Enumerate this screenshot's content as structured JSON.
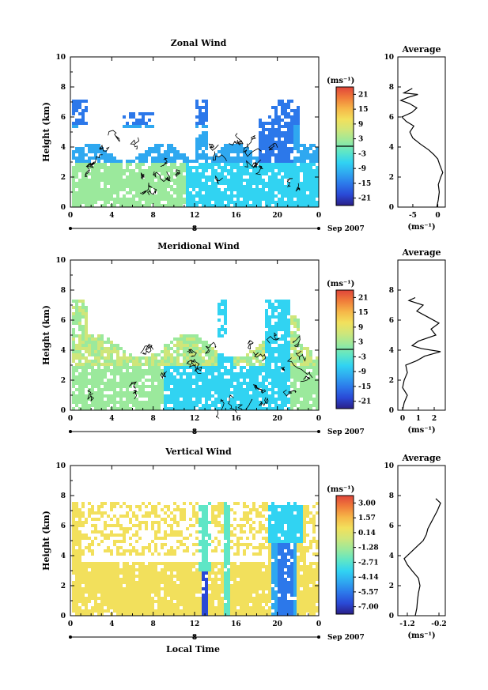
{
  "page": {
    "date_label": "Sep 2007",
    "xlabel": "Local Time"
  },
  "colormap": [
    "#2a1f88",
    "#2a49d6",
    "#2c78ea",
    "#2fa8f0",
    "#31d3f2",
    "#5fe6c6",
    "#9be99c",
    "#cfe67a",
    "#f2e05c",
    "#f6b648",
    "#f07c3a",
    "#e0453a"
  ],
  "chart_data": [
    {
      "type": "heatmap",
      "title": "Zonal Wind",
      "ylabel": "Height (km)",
      "x_ticks": [
        "0",
        "4",
        "8",
        "12",
        "16",
        "20",
        "0"
      ],
      "x_sub_label": "8",
      "y_ticks": [
        "0",
        "2",
        "4",
        "6",
        "8",
        "10"
      ],
      "xlim": [
        0,
        24
      ],
      "ylim": [
        0,
        10
      ],
      "colorbar": {
        "unit": "(ms⁻¹)",
        "ticks": [
          "21",
          "15",
          "9",
          "3",
          "-3",
          "-9",
          "-15",
          "-21"
        ],
        "range": [
          -24,
          24
        ]
      },
      "average": {
        "title": "Average",
        "xlabel": "(ms⁻¹)",
        "x_ticks": [
          "-5",
          "0"
        ],
        "xlim": [
          -8,
          1.5
        ],
        "y_ticks": [
          "0",
          "2",
          "4",
          "6",
          "8",
          "10"
        ],
        "profile": [
          [
            -0.2,
            0
          ],
          [
            0.1,
            0.5
          ],
          [
            0.3,
            1
          ],
          [
            0.1,
            1.5
          ],
          [
            0.6,
            2
          ],
          [
            1.0,
            2.3
          ],
          [
            0.4,
            2.8
          ],
          [
            0.0,
            3.2
          ],
          [
            -0.8,
            3.5
          ],
          [
            -1.8,
            3.8
          ],
          [
            -3.5,
            4.2
          ],
          [
            -5.0,
            4.6
          ],
          [
            -5.6,
            5.0
          ],
          [
            -4.8,
            5.4
          ],
          [
            -6.3,
            5.7
          ],
          [
            -7.2,
            6.0
          ],
          [
            -5.2,
            6.3
          ],
          [
            -4.2,
            6.6
          ],
          [
            -5.7,
            6.9
          ],
          [
            -7.4,
            7.1
          ],
          [
            -6.0,
            7.3
          ],
          [
            -4.0,
            7.5
          ],
          [
            -6.8,
            7.6
          ],
          [
            -5.1,
            7.9
          ]
        ]
      }
    },
    {
      "type": "heatmap",
      "title": "Meridional Wind",
      "ylabel": "Height (km)",
      "x_ticks": [
        "0",
        "4",
        "8",
        "12",
        "16",
        "20",
        "0"
      ],
      "x_sub_label": "8",
      "y_ticks": [
        "0",
        "2",
        "4",
        "6",
        "8",
        "10"
      ],
      "xlim": [
        0,
        24
      ],
      "ylim": [
        0,
        10
      ],
      "colorbar": {
        "unit": "(ms⁻¹)",
        "ticks": [
          "21",
          "15",
          "9",
          "3",
          "-3",
          "-9",
          "-15",
          "-21"
        ],
        "range": [
          -24,
          24
        ]
      },
      "average": {
        "title": "Average",
        "xlabel": "(ms⁻¹)",
        "x_ticks": [
          "0",
          "1",
          "2"
        ],
        "xlim": [
          -0.3,
          2.7
        ],
        "y_ticks": [
          "0",
          "2",
          "4",
          "6",
          "8"
        ],
        "profile": [
          [
            0.0,
            0
          ],
          [
            0.1,
            0.5
          ],
          [
            0.3,
            1
          ],
          [
            0.0,
            1.5
          ],
          [
            0.1,
            2
          ],
          [
            0.3,
            2.5
          ],
          [
            0.2,
            3
          ],
          [
            0.9,
            3.3
          ],
          [
            1.4,
            3.6
          ],
          [
            2.4,
            3.9
          ],
          [
            1.2,
            4.1
          ],
          [
            0.6,
            4.3
          ],
          [
            1.0,
            4.6
          ],
          [
            2.1,
            5.0
          ],
          [
            1.8,
            5.4
          ],
          [
            2.3,
            5.8
          ],
          [
            1.6,
            6.2
          ],
          [
            0.9,
            6.6
          ],
          [
            1.3,
            7.0
          ],
          [
            0.4,
            7.3
          ],
          [
            0.8,
            7.5
          ]
        ]
      }
    },
    {
      "type": "heatmap",
      "title": "Vertical Wind",
      "ylabel": "Height (km)",
      "x_ticks": [
        "0",
        "4",
        "8",
        "12",
        "16",
        "20",
        "0"
      ],
      "x_sub_label": "8",
      "y_ticks": [
        "0",
        "2",
        "4",
        "6",
        "8",
        "10"
      ],
      "xlim": [
        0,
        24
      ],
      "ylim": [
        0,
        10
      ],
      "colorbar": {
        "unit": "(ms⁻¹)",
        "ticks": [
          "3.00",
          "1.57",
          "0.14",
          "-1.28",
          "-2.71",
          "-4.14",
          "-5.57",
          "-7.00"
        ],
        "range": [
          -7.7,
          3.7
        ]
      },
      "average": {
        "title": "Average",
        "xlabel": "(ms⁻¹)",
        "x_ticks": [
          "-1.2",
          "-0.2"
        ],
        "xlim": [
          -1.5,
          0.0
        ],
        "y_ticks": [
          "0",
          "2",
          "4",
          "6",
          "8",
          "10"
        ],
        "profile": [
          [
            -0.95,
            0
          ],
          [
            -0.9,
            0.5
          ],
          [
            -0.88,
            1
          ],
          [
            -0.85,
            1.5
          ],
          [
            -0.8,
            2
          ],
          [
            -0.85,
            2.5
          ],
          [
            -1.05,
            3
          ],
          [
            -1.2,
            3.4
          ],
          [
            -1.3,
            3.8
          ],
          [
            -1.1,
            4.2
          ],
          [
            -0.9,
            4.6
          ],
          [
            -0.7,
            5.0
          ],
          [
            -0.6,
            5.4
          ],
          [
            -0.55,
            5.8
          ],
          [
            -0.45,
            6.2
          ],
          [
            -0.35,
            6.6
          ],
          [
            -0.25,
            7.0
          ],
          [
            -0.15,
            7.5
          ],
          [
            -0.3,
            7.8
          ]
        ]
      }
    }
  ]
}
